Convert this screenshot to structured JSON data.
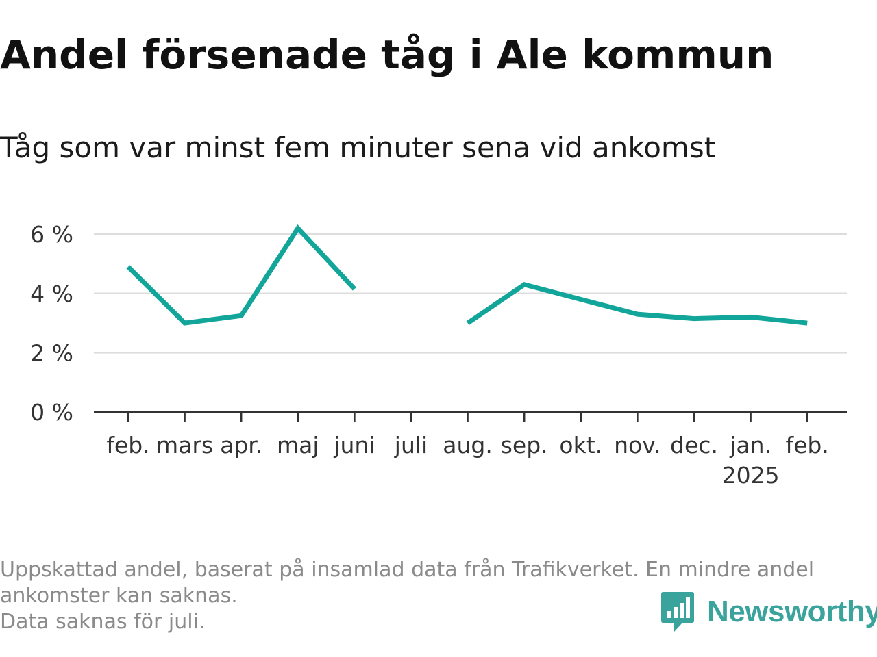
{
  "title": "Andel försenade tåg i Ale kommun",
  "subtitle": "Tåg som var minst fem minuter sena vid ankomst",
  "footnote": {
    "lines": [
      "Uppskattad andel, baserat på insamlad data från Trafikverket. En mindre andel",
      "ankomster kan saknas.",
      "Data saknas för juli."
    ]
  },
  "brand": {
    "name": "Newsworthy",
    "icon": "newsworthy-logo-icon",
    "color": "#3aa39b"
  },
  "chart_data": {
    "type": "line",
    "categories": [
      "feb.",
      "mars",
      "apr.",
      "maj",
      "juni",
      "juli",
      "aug.",
      "sep.",
      "okt.",
      "nov.",
      "dec.",
      "jan.",
      "feb."
    ],
    "year_label": {
      "category_index": 11,
      "text": "2025"
    },
    "series": [
      {
        "values": [
          4.9,
          3.0,
          3.25,
          6.2,
          4.15,
          null,
          3.0,
          4.3,
          3.8,
          3.3,
          3.15,
          3.2,
          3.0
        ],
        "color": "#12a59a"
      }
    ],
    "y_ticks": [
      0,
      2,
      4,
      6
    ],
    "y_tick_labels": [
      "0 %",
      "2 %",
      "4 %",
      "6 %"
    ],
    "ylim": [
      0,
      6.6
    ],
    "grid": true,
    "xlabel": "",
    "ylabel": ""
  }
}
